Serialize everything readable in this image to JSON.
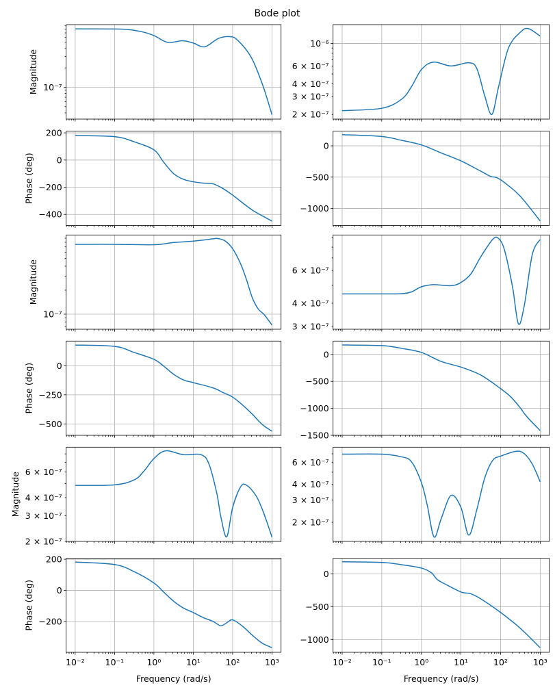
{
  "title": "Bode plot",
  "colors": {
    "line": "#1f77b4",
    "grid": "#b0b0b0",
    "axes": "#000000"
  },
  "xticks_bottom": [
    {
      "value": 0.01,
      "label": "10⁻²"
    },
    {
      "value": 0.1,
      "label": "10⁻¹"
    },
    {
      "value": 1,
      "label": "10⁰"
    },
    {
      "value": 10,
      "label": "10¹"
    },
    {
      "value": 100,
      "label": "10²"
    },
    {
      "value": 1000,
      "label": "10³"
    }
  ],
  "chart_data": [
    {
      "type": "line",
      "xscale": "log",
      "yscale": "log",
      "xlim": [
        0.0059,
        1700
      ],
      "ylim": [
        3.2e-08,
        9.4e-07
      ],
      "grid": true,
      "ylabel": "Magnitude",
      "xlabel": "",
      "yticks": [
        {
          "value": 1e-07,
          "label": "10⁻⁷"
        }
      ],
      "points": [
        [
          0.01,
          8.08e-07
        ],
        [
          0.1,
          8.05e-07
        ],
        [
          0.22,
          7.9e-07
        ],
        [
          0.49,
          7.3e-07
        ],
        [
          1,
          6.37e-07
        ],
        [
          2.24,
          4.99e-07
        ],
        [
          5.37,
          5.28e-07
        ],
        [
          10,
          4.87e-07
        ],
        [
          19.5,
          4.25e-07
        ],
        [
          42.7,
          5.7e-07
        ],
        [
          83.2,
          6.12e-07
        ],
        [
          132,
          5.42e-07
        ],
        [
          295,
          2.94e-07
        ],
        [
          575,
          1.1e-07
        ],
        [
          1000,
          3.75e-08
        ]
      ]
    },
    {
      "type": "line",
      "xscale": "log",
      "yscale": "log",
      "xlim": [
        0.0059,
        1700
      ],
      "ylim": [
        1.8e-07,
        1.53e-06
      ],
      "grid": true,
      "ylabel": "",
      "xlabel": "",
      "yticks": [
        {
          "value": 1e-06,
          "label": "10⁻⁶"
        },
        {
          "value": 6e-07,
          "label": "6 × 10⁻⁷"
        },
        {
          "value": 4e-07,
          "label": "4 × 10⁻⁷"
        },
        {
          "value": 3e-07,
          "label": "3 × 10⁻⁷"
        },
        {
          "value": 2e-07,
          "label": "2 × 10⁻⁷"
        }
      ],
      "points": [
        [
          0.01,
          2.18e-07
        ],
        [
          0.1,
          2.3e-07
        ],
        [
          0.316,
          2.82e-07
        ],
        [
          0.562,
          3.75e-07
        ],
        [
          1,
          5.52e-07
        ],
        [
          2,
          6.55e-07
        ],
        [
          5.62,
          6e-07
        ],
        [
          15.8,
          6.45e-07
        ],
        [
          25.1,
          5.66e-07
        ],
        [
          39.8,
          3.05e-07
        ],
        [
          60.3,
          2e-07
        ],
        [
          89.1,
          3.75e-07
        ],
        [
          158,
          9e-07
        ],
        [
          316,
          1.29e-06
        ],
        [
          501,
          1.4e-06
        ],
        [
          1000,
          1.18e-06
        ]
      ]
    },
    {
      "type": "line",
      "xscale": "log",
      "yscale": "linear",
      "xlim": [
        0.0059,
        1700
      ],
      "ylim": [
        -482,
        212
      ],
      "grid": true,
      "ylabel": "Phase (deg)",
      "xlabel": "",
      "yticks": [
        {
          "value": 200,
          "label": "200"
        },
        {
          "value": 0,
          "label": "0"
        },
        {
          "value": -200,
          "label": "−200"
        },
        {
          "value": -400,
          "label": "−400"
        }
      ],
      "points": [
        [
          0.01,
          180
        ],
        [
          0.1,
          172
        ],
        [
          0.316,
          134
        ],
        [
          1,
          75
        ],
        [
          1.78,
          -17
        ],
        [
          3.16,
          -100
        ],
        [
          5.62,
          -142
        ],
        [
          10,
          -160
        ],
        [
          17.8,
          -170
        ],
        [
          31.6,
          -175
        ],
        [
          56.2,
          -209
        ],
        [
          100,
          -258
        ],
        [
          316,
          -368
        ],
        [
          1000,
          -449
        ]
      ]
    },
    {
      "type": "line",
      "xscale": "log",
      "yscale": "linear",
      "xlim": [
        0.0059,
        1700
      ],
      "ylim": [
        -1274,
        234
      ],
      "grid": true,
      "ylabel": "",
      "xlabel": "",
      "yticks": [
        {
          "value": 0,
          "label": "0"
        },
        {
          "value": -500,
          "label": "−500"
        },
        {
          "value": -1000,
          "label": "−1000"
        }
      ],
      "points": [
        [
          0.01,
          179
        ],
        [
          0.1,
          150
        ],
        [
          0.316,
          88
        ],
        [
          1,
          15
        ],
        [
          3.16,
          -113
        ],
        [
          10,
          -241
        ],
        [
          31.6,
          -405
        ],
        [
          56.2,
          -489
        ],
        [
          79.4,
          -507
        ],
        [
          126,
          -588
        ],
        [
          316,
          -807
        ],
        [
          1000,
          -1201
        ]
      ]
    },
    {
      "type": "line",
      "xscale": "log",
      "yscale": "log",
      "xlim": [
        0.0059,
        1700
      ],
      "ylim": [
        6.47e-08,
        9.87e-07
      ],
      "grid": true,
      "ylabel": "Magnitude",
      "xlabel": "",
      "yticks": [
        {
          "value": 1e-07,
          "label": "10⁻⁷"
        }
      ],
      "points": [
        [
          0.01,
          7.53e-07
        ],
        [
          0.1,
          7.53e-07
        ],
        [
          1,
          7.45e-07
        ],
        [
          3.16,
          7.94e-07
        ],
        [
          10,
          8.26e-07
        ],
        [
          31.6,
          8.83e-07
        ],
        [
          39.8,
          8.93e-07
        ],
        [
          63.1,
          8.36e-07
        ],
        [
          100,
          6.64e-07
        ],
        [
          158,
          4.33e-07
        ],
        [
          224,
          2.73e-07
        ],
        [
          316,
          1.61e-07
        ],
        [
          447,
          1.16e-07
        ],
        [
          631,
          9.9e-08
        ],
        [
          1000,
          7.3e-08
        ]
      ]
    },
    {
      "type": "line",
      "xscale": "log",
      "yscale": "log",
      "xlim": [
        0.0059,
        1700
      ],
      "ylim": [
        2.9e-07,
        9.3e-07
      ],
      "grid": true,
      "ylabel": "",
      "xlabel": "",
      "yticks": [
        {
          "value": 6e-07,
          "label": "6 × 10⁻⁷"
        },
        {
          "value": 4e-07,
          "label": "4 × 10⁻⁷"
        },
        {
          "value": 3e-07,
          "label": "3 × 10⁻⁷"
        }
      ],
      "points": [
        [
          0.01,
          4.49e-07
        ],
        [
          0.1,
          4.49e-07
        ],
        [
          0.316,
          4.5e-07
        ],
        [
          0.562,
          4.6e-07
        ],
        [
          1,
          4.9e-07
        ],
        [
          2,
          5.03e-07
        ],
        [
          5.62,
          4.97e-07
        ],
        [
          10,
          5.17e-07
        ],
        [
          17.8,
          5.75e-07
        ],
        [
          31.6,
          7.1e-07
        ],
        [
          63.1,
          8.8e-07
        ],
        [
          89.1,
          8.9e-07
        ],
        [
          126,
          7.7e-07
        ],
        [
          200,
          4.9e-07
        ],
        [
          282,
          3.1e-07
        ],
        [
          398,
          3.9e-07
        ],
        [
          631,
          7.3e-07
        ],
        [
          1000,
          8.8e-07
        ]
      ]
    },
    {
      "type": "line",
      "xscale": "log",
      "yscale": "linear",
      "xlim": [
        0.0059,
        1700
      ],
      "ylim": [
        -598,
        212
      ],
      "grid": true,
      "ylabel": "Phase (deg)",
      "xlabel": "",
      "yticks": [
        {
          "value": 0,
          "label": "0"
        },
        {
          "value": -250,
          "label": "−250"
        },
        {
          "value": -500,
          "label": "−500"
        }
      ],
      "points": [
        [
          0.01,
          178
        ],
        [
          0.1,
          167
        ],
        [
          0.316,
          114
        ],
        [
          1,
          55
        ],
        [
          1.78,
          -4
        ],
        [
          3.16,
          -73
        ],
        [
          5.62,
          -122
        ],
        [
          10,
          -145
        ],
        [
          31.6,
          -190
        ],
        [
          56.2,
          -229
        ],
        [
          100,
          -269
        ],
        [
          178,
          -337
        ],
        [
          316,
          -416
        ],
        [
          562,
          -504
        ],
        [
          1000,
          -563
        ]
      ]
    },
    {
      "type": "line",
      "xscale": "log",
      "yscale": "linear",
      "xlim": [
        0.0059,
        1700
      ],
      "ylim": [
        -1500,
        248
      ],
      "grid": true,
      "ylabel": "",
      "xlabel": "",
      "yticks": [
        {
          "value": 0,
          "label": "0"
        },
        {
          "value": -500,
          "label": "−500"
        },
        {
          "value": -1000,
          "label": "−1000"
        },
        {
          "value": -1500,
          "label": "−1500"
        }
      ],
      "points": [
        [
          0.01,
          176
        ],
        [
          0.1,
          164
        ],
        [
          0.316,
          113
        ],
        [
          1,
          38
        ],
        [
          3.16,
          -130
        ],
        [
          10,
          -235
        ],
        [
          31.6,
          -382
        ],
        [
          100,
          -634
        ],
        [
          178,
          -782
        ],
        [
          316,
          -992
        ],
        [
          398,
          -1097
        ],
        [
          562,
          -1223
        ],
        [
          1000,
          -1412
        ]
      ]
    },
    {
      "type": "line",
      "xscale": "log",
      "yscale": "log",
      "xlim": [
        0.0059,
        1700
      ],
      "ylim": [
        2e-07,
        8.9e-07
      ],
      "grid": true,
      "ylabel": "Magnitude",
      "xlabel": "",
      "yticks": [
        {
          "value": 6e-07,
          "label": "6 × 10⁻⁷"
        },
        {
          "value": 4e-07,
          "label": "4 × 10⁻⁷"
        },
        {
          "value": 3e-07,
          "label": "3 × 10⁻⁷"
        },
        {
          "value": 2e-07,
          "label": "2 × 10⁻⁷"
        }
      ],
      "points": [
        [
          0.01,
          4.86e-07
        ],
        [
          0.1,
          4.9e-07
        ],
        [
          0.316,
          5.3e-07
        ],
        [
          0.562,
          6.1e-07
        ],
        [
          1,
          7.43e-07
        ],
        [
          2,
          8.4e-07
        ],
        [
          5.62,
          7.9e-07
        ],
        [
          15.8,
          7.9e-07
        ],
        [
          25.1,
          6.8e-07
        ],
        [
          39.8,
          4.26e-07
        ],
        [
          50.1,
          2.96e-07
        ],
        [
          70.8,
          2.15e-07
        ],
        [
          100,
          3.42e-07
        ],
        [
          158,
          4.73e-07
        ],
        [
          224,
          4.88e-07
        ],
        [
          398,
          4.1e-07
        ],
        [
          631,
          3.08e-07
        ],
        [
          1000,
          2.14e-07
        ]
      ]
    },
    {
      "type": "line",
      "xscale": "log",
      "yscale": "log",
      "xlim": [
        0.0059,
        1700
      ],
      "ylim": [
        1.41e-07,
        7.9e-07
      ],
      "grid": true,
      "ylabel": "",
      "xlabel": "",
      "yticks": [
        {
          "value": 6e-07,
          "label": "6 × 10⁻⁷"
        },
        {
          "value": 4e-07,
          "label": "4 × 10⁻⁷"
        },
        {
          "value": 3e-07,
          "label": "3 × 10⁻⁷"
        },
        {
          "value": 2e-07,
          "label": "2 × 10⁻⁷"
        }
      ],
      "points": [
        [
          0.01,
          6.95e-07
        ],
        [
          0.1,
          6.95e-07
        ],
        [
          0.316,
          6.62e-07
        ],
        [
          0.562,
          6.05e-07
        ],
        [
          1,
          4.15e-07
        ],
        [
          1.41,
          2.73e-07
        ],
        [
          2.09,
          1.53e-07
        ],
        [
          3.16,
          2.13e-07
        ],
        [
          5.62,
          3.27e-07
        ],
        [
          10,
          2.62e-07
        ],
        [
          15.8,
          1.58e-07
        ],
        [
          25.1,
          2.52e-07
        ],
        [
          39.8,
          4.5e-07
        ],
        [
          63.1,
          6.2e-07
        ],
        [
          100,
          6.7e-07
        ],
        [
          251,
          7.33e-07
        ],
        [
          398,
          7e-07
        ],
        [
          631,
          5.8e-07
        ],
        [
          1000,
          4.2e-07
        ]
      ]
    },
    {
      "type": "line",
      "xscale": "log",
      "yscale": "linear",
      "xlim": [
        0.0059,
        1700
      ],
      "ylim": [
        -399,
        206
      ],
      "grid": true,
      "ylabel": "Phase (deg)",
      "xlabel": "Frequency (rad/s)",
      "yticks": [
        {
          "value": 200,
          "label": "200"
        },
        {
          "value": 0,
          "label": "0"
        },
        {
          "value": -200,
          "label": "−200"
        }
      ],
      "points": [
        [
          0.01,
          182
        ],
        [
          0.1,
          166
        ],
        [
          0.316,
          120
        ],
        [
          1,
          47
        ],
        [
          1.78,
          -12
        ],
        [
          3.16,
          -70
        ],
        [
          5.62,
          -114
        ],
        [
          10,
          -143
        ],
        [
          17.8,
          -175
        ],
        [
          31.6,
          -200
        ],
        [
          50.1,
          -228
        ],
        [
          70.8,
          -209
        ],
        [
          100,
          -190
        ],
        [
          178,
          -231
        ],
        [
          316,
          -289
        ],
        [
          562,
          -340
        ],
        [
          1000,
          -369
        ]
      ]
    },
    {
      "type": "line",
      "xscale": "log",
      "yscale": "linear",
      "xlim": [
        0.0059,
        1700
      ],
      "ylim": [
        -1194,
        235
      ],
      "grid": true,
      "ylabel": "",
      "xlabel": "Frequency (rad/s)",
      "yticks": [
        {
          "value": 0,
          "label": "0"
        },
        {
          "value": -500,
          "label": "−500"
        },
        {
          "value": -1000,
          "label": "−1000"
        }
      ],
      "points": [
        [
          0.01,
          183
        ],
        [
          0.1,
          173
        ],
        [
          0.316,
          138
        ],
        [
          1,
          87
        ],
        [
          1.78,
          17
        ],
        [
          2.51,
          -87
        ],
        [
          3.98,
          -156
        ],
        [
          10,
          -277
        ],
        [
          17.8,
          -305
        ],
        [
          31.6,
          -381
        ],
        [
          100,
          -588
        ],
        [
          316,
          -830
        ],
        [
          1000,
          -1125
        ]
      ]
    }
  ]
}
